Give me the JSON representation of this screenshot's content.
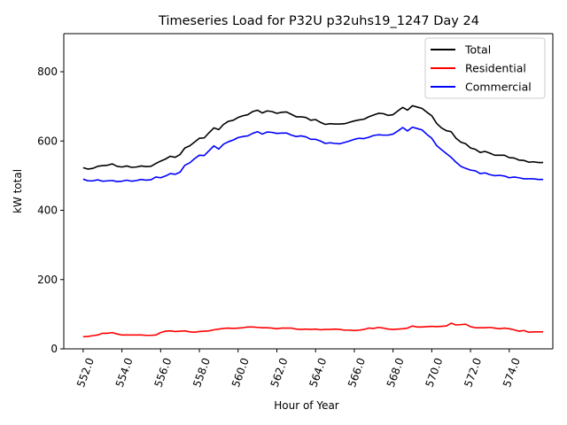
{
  "chart_data": {
    "type": "line",
    "title": "Timeseries Load for P32U p32uhs19_1247  Day 24",
    "xlabel": "Hour of Year",
    "ylabel": "kW total",
    "xlim": [
      551.0,
      576.25
    ],
    "ylim": [
      0,
      910
    ],
    "x_ticks": [
      552.0,
      554.0,
      556.0,
      558.0,
      560.0,
      562.0,
      564.0,
      566.0,
      568.0,
      570.0,
      572.0,
      574.0
    ],
    "x_tick_labels": [
      "552.0",
      "554.0",
      "556.0",
      "558.0",
      "560.0",
      "562.0",
      "564.0",
      "566.0",
      "568.0",
      "570.0",
      "572.0",
      "574.0"
    ],
    "y_ticks": [
      0,
      200,
      400,
      600,
      800
    ],
    "y_tick_labels": [
      "0",
      "200",
      "400",
      "600",
      "800"
    ],
    "legend_position": "top-right",
    "grid": false,
    "x": [
      552.0,
      552.25,
      552.5,
      552.75,
      553.0,
      553.25,
      553.5,
      553.75,
      554.0,
      554.25,
      554.5,
      554.75,
      555.0,
      555.25,
      555.5,
      555.75,
      556.0,
      556.25,
      556.5,
      556.75,
      557.0,
      557.25,
      557.5,
      557.75,
      558.0,
      558.25,
      558.5,
      558.75,
      559.0,
      559.25,
      559.5,
      559.75,
      560.0,
      560.25,
      560.5,
      560.75,
      561.0,
      561.25,
      561.5,
      561.75,
      562.0,
      562.25,
      562.5,
      562.75,
      563.0,
      563.25,
      563.5,
      563.75,
      564.0,
      564.25,
      564.5,
      564.75,
      565.0,
      565.25,
      565.5,
      565.75,
      566.0,
      566.25,
      566.5,
      566.75,
      567.0,
      567.25,
      567.5,
      567.75,
      568.0,
      568.25,
      568.5,
      568.75,
      569.0,
      569.25,
      569.5,
      569.75,
      570.0,
      570.25,
      570.5,
      570.75,
      571.0,
      571.25,
      571.5,
      571.75,
      572.0,
      572.25,
      572.5,
      572.75,
      573.0,
      573.25,
      573.5,
      573.75,
      574.0,
      574.25,
      574.5,
      574.75,
      575.0,
      575.25,
      575.5,
      575.75
    ],
    "series": [
      {
        "name": "Total",
        "color": "#000000",
        "values": [
          523,
          519,
          521,
          527,
          529,
          530,
          534,
          527,
          525,
          528,
          524,
          525,
          528,
          526,
          527,
          535,
          542,
          548,
          556,
          553,
          561,
          580,
          586,
          597,
          608,
          609,
          624,
          638,
          633,
          648,
          657,
          660,
          668,
          673,
          676,
          685,
          689,
          681,
          687,
          685,
          680,
          683,
          684,
          677,
          670,
          670,
          668,
          660,
          662,
          654,
          648,
          650,
          649,
          649,
          650,
          654,
          658,
          661,
          663,
          670,
          675,
          680,
          679,
          674,
          676,
          687,
          697,
          689,
          702,
          698,
          694,
          683,
          673,
          651,
          638,
          630,
          627,
          608,
          597,
          592,
          580,
          576,
          567,
          570,
          565,
          559,
          559,
          559,
          552,
          551,
          545,
          544,
          539,
          540,
          538,
          538
        ]
      },
      {
        "name": "Residential",
        "color": "#ff0000",
        "values": [
          35,
          36,
          38,
          40,
          45,
          45,
          47,
          43,
          40,
          40,
          40,
          40,
          40,
          39,
          39,
          40,
          47,
          51,
          52,
          50,
          51,
          52,
          49,
          48,
          50,
          51,
          52,
          55,
          57,
          59,
          60,
          59,
          60,
          61,
          63,
          63,
          62,
          61,
          61,
          60,
          58,
          60,
          60,
          60,
          57,
          56,
          57,
          56,
          57,
          55,
          56,
          56,
          57,
          56,
          54,
          54,
          53,
          54,
          56,
          60,
          59,
          62,
          60,
          57,
          56,
          57,
          58,
          60,
          66,
          63,
          63,
          64,
          65,
          64,
          65,
          66,
          74,
          69,
          70,
          71,
          64,
          61,
          61,
          61,
          62,
          60,
          58,
          60,
          58,
          55,
          51,
          53,
          48,
          49,
          49,
          49
        ]
      },
      {
        "name": "Commercial",
        "color": "#0000ff",
        "values": [
          490,
          485,
          485,
          488,
          484,
          485,
          486,
          483,
          484,
          487,
          484,
          486,
          489,
          487,
          488,
          496,
          494,
          499,
          506,
          504,
          510,
          530,
          537,
          549,
          559,
          558,
          572,
          586,
          577,
          591,
          598,
          603,
          610,
          613,
          615,
          622,
          627,
          620,
          626,
          625,
          622,
          623,
          623,
          617,
          613,
          615,
          612,
          605,
          605,
          600,
          593,
          595,
          593,
          592,
          596,
          600,
          605,
          608,
          607,
          611,
          616,
          618,
          617,
          617,
          620,
          629,
          639,
          629,
          640,
          636,
          632,
          619,
          608,
          587,
          575,
          564,
          553,
          539,
          527,
          521,
          516,
          514,
          506,
          508,
          503,
          500,
          501,
          499,
          494,
          496,
          494,
          491,
          491,
          491,
          489,
          489
        ]
      }
    ]
  }
}
